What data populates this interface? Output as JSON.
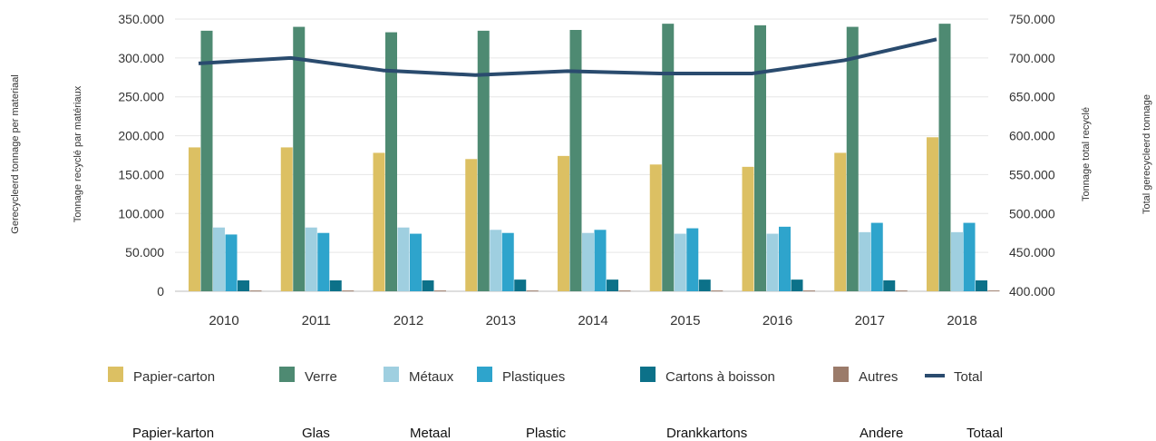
{
  "chart_data": {
    "type": "bar",
    "categories": [
      "2010",
      "2011",
      "2012",
      "2013",
      "2014",
      "2015",
      "2016",
      "2017",
      "2018"
    ],
    "series": [
      {
        "name": "Papier-carton",
        "name_nl": "Papier-karton",
        "color": "#dcc063",
        "axis": "left",
        "values": [
          185000,
          185000,
          178000,
          170000,
          174000,
          163000,
          160000,
          178000,
          198000
        ]
      },
      {
        "name": "Verre",
        "name_nl": "Glas",
        "color": "#4e8a72",
        "axis": "left",
        "values": [
          335000,
          340000,
          333000,
          335000,
          336000,
          344000,
          342000,
          340000,
          344000
        ]
      },
      {
        "name": "Métaux",
        "name_nl": "Metaal",
        "color": "#9fcfe0",
        "axis": "left",
        "values": [
          82000,
          82000,
          82000,
          79000,
          75000,
          74000,
          74000,
          76000,
          76000
        ]
      },
      {
        "name": "Plastiques",
        "name_nl": "Plastic",
        "color": "#2ea4cc",
        "axis": "left",
        "values": [
          73000,
          75000,
          74000,
          75000,
          79000,
          81000,
          83000,
          88000,
          88000
        ]
      },
      {
        "name": "Cartons à boisson",
        "name_nl": "Drankkartons",
        "color": "#0c7189",
        "axis": "left",
        "values": [
          14000,
          14000,
          14000,
          15000,
          15000,
          15000,
          15000,
          14000,
          14000
        ]
      },
      {
        "name": "Autres",
        "name_nl": "Andere",
        "color": "#9b7b6a",
        "axis": "left",
        "values": [
          1000,
          1000,
          1000,
          1000,
          1000,
          1000,
          1000,
          1000,
          1000
        ]
      },
      {
        "name": "Total",
        "name_nl": "Totaal",
        "color": "#2a4b6e",
        "axis": "right",
        "kind": "line",
        "values": [
          693000,
          700000,
          684000,
          678000,
          683000,
          680000,
          680000,
          697000,
          724000
        ]
      }
    ],
    "left_axis": {
      "ylim": [
        0,
        350000
      ],
      "tick_values": [
        0,
        50000,
        100000,
        150000,
        200000,
        250000,
        300000,
        350000
      ],
      "tick_labels": [
        "0",
        "50.000",
        "100.000",
        "150.000",
        "200.000",
        "250.000",
        "300.000",
        "350.000"
      ]
    },
    "right_axis": {
      "ylim": [
        400000,
        750000
      ],
      "tick_values": [
        400000,
        450000,
        500000,
        550000,
        600000,
        650000,
        700000,
        750000
      ],
      "tick_labels": [
        "400.000",
        "450.000",
        "500.000",
        "550.000",
        "600.000",
        "650.000",
        "700.000",
        "750.000"
      ]
    },
    "ylabel_left": "Tonnage recyclé par matériaux",
    "ylabel_left_nl": "Gerecycleerd tonnage per materiaal",
    "ylabel_right": "Tonnage total recyclé",
    "ylabel_right_nl": "Total gerecycleerd tonnage",
    "grid": true,
    "legend_position": "bottom"
  }
}
